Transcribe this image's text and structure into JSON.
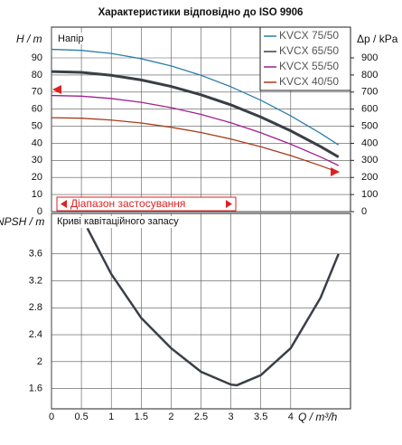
{
  "chart_data": [
    {
      "type": "line",
      "title": "Характеристики відповідно до ISO 9906",
      "y_label": "H / m",
      "y2_label": "Δp / kPa",
      "annotations": [
        "Напір",
        "Діапазон застосування"
      ],
      "x": [
        0,
        0.5,
        1,
        1.5,
        2,
        2.5,
        3,
        3.5,
        4,
        4.5,
        4.8
      ],
      "series": [
        {
          "name": "KVCX 75/50",
          "color": "#2a7fa6",
          "values": [
            95,
            94.4,
            92.6,
            89.5,
            85.3,
            79.8,
            73.1,
            65.2,
            56.1,
            45.8,
            39
          ]
        },
        {
          "name": "KVCX 65/50",
          "color": "#3a3f47",
          "values": [
            82,
            81.5,
            79.8,
            77.1,
            73.3,
            68.4,
            62.5,
            55.4,
            47.3,
            38.1,
            32
          ]
        },
        {
          "name": "KVCX 55/50",
          "color": "#a0208f",
          "values": [
            68,
            67.6,
            66.2,
            64,
            60.9,
            56.9,
            52,
            46.2,
            39.5,
            32,
            27
          ]
        },
        {
          "name": "KVCX 40/50",
          "color": "#a83a1c",
          "values": [
            55,
            54.7,
            53.6,
            51.9,
            49.4,
            46.3,
            42.5,
            38,
            32.8,
            26.9,
            23
          ]
        }
      ],
      "xlim": [
        0,
        5
      ],
      "xticks": [
        0,
        0.5,
        1,
        1.5,
        2,
        2.5,
        3,
        3.5,
        4
      ],
      "ylim": [
        0,
        108
      ],
      "yticks": [
        0,
        10,
        20,
        30,
        40,
        50,
        60,
        70,
        80,
        90
      ],
      "y2lim": [
        0,
        1080
      ],
      "y2ticks": [
        0,
        100,
        200,
        300,
        400,
        500,
        600,
        700,
        800,
        900
      ],
      "grid": true
    },
    {
      "type": "line",
      "y_label": "NPSH / m",
      "x_label": "Q / m³/h",
      "annotations": [
        "Криві кавітаційного запасу"
      ],
      "x": [
        0.6,
        1,
        1.5,
        2,
        2.5,
        3,
        3.1,
        3.5,
        4,
        4.5,
        4.8
      ],
      "values": [
        3.98,
        3.3,
        2.65,
        2.2,
        1.85,
        1.66,
        1.65,
        1.8,
        2.2,
        2.95,
        3.6
      ],
      "color": "#3a3f47",
      "xlim": [
        0,
        5
      ],
      "xticks": [
        0,
        0.5,
        1,
        1.5,
        2,
        2.5,
        3,
        3.5,
        4
      ],
      "ylim": [
        1.3,
        4.2
      ],
      "yticks": [
        1.6,
        2,
        2.4,
        2.8,
        3.2,
        3.6
      ],
      "grid": true
    }
  ]
}
